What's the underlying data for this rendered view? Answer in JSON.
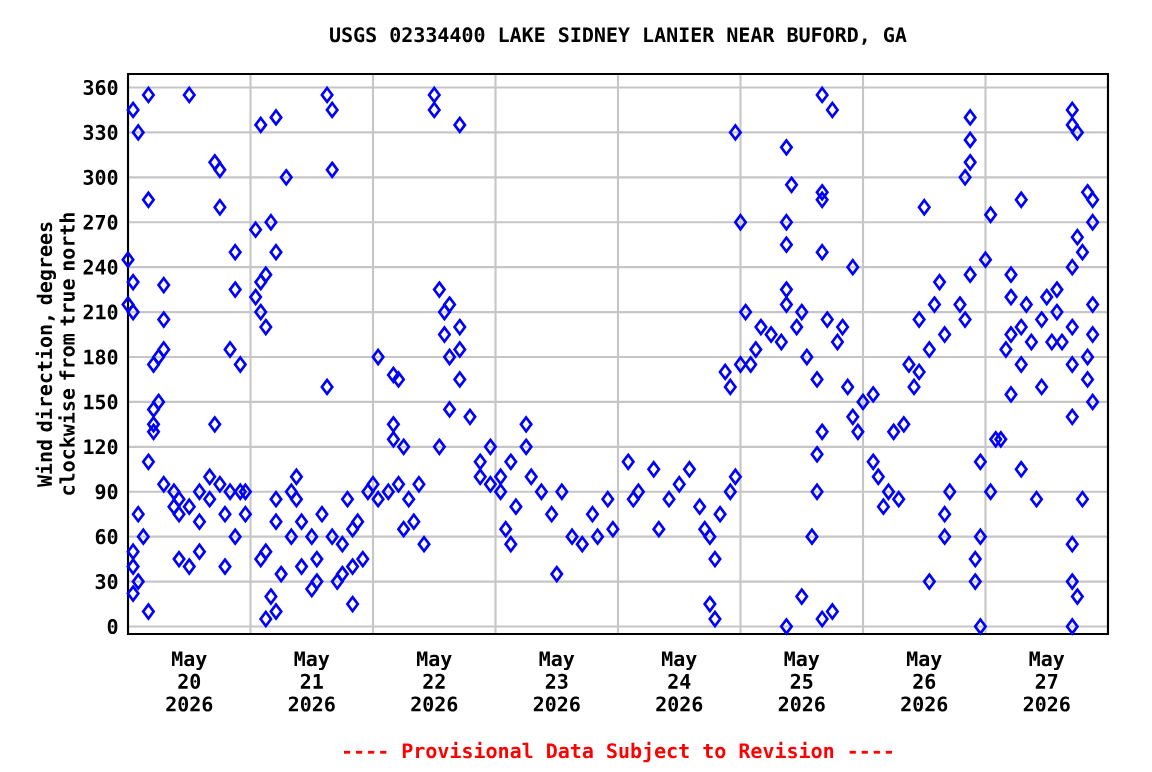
{
  "chart_data": {
    "type": "scatter",
    "title": "USGS 02334400 LAKE SIDNEY LANIER NEAR BUFORD, GA",
    "ylabel": "Wind direction, degrees clockwise from true north",
    "annotations": [
      "---- Provisional Data Subject to Revision ----"
    ],
    "color": "#0000ff",
    "marker": "diamond",
    "grid": true,
    "xlim": [
      "2026-05-20T00:00",
      "2026-05-28T00:00"
    ],
    "ylim": [
      -5,
      369
    ],
    "yticks": [
      0,
      30,
      60,
      90,
      120,
      150,
      180,
      210,
      240,
      270,
      300,
      330,
      360
    ],
    "xticks": [
      {
        "value": "2026-05-20T12:00",
        "label": "May 20 2026"
      },
      {
        "value": "2026-05-21T00:00",
        "label": null
      },
      {
        "value": "2026-05-21T12:00",
        "label": "May 21 2026"
      },
      {
        "value": "2026-05-22T00:00",
        "label": null
      },
      {
        "value": "2026-05-22T12:00",
        "label": "May 22 2026"
      },
      {
        "value": "2026-05-23T00:00",
        "label": null
      },
      {
        "value": "2026-05-23T12:00",
        "label": "May 23 2026"
      },
      {
        "value": "2026-05-24T00:00",
        "label": null
      },
      {
        "value": "2026-05-24T12:00",
        "label": "May 24 2026"
      },
      {
        "value": "2026-05-25T00:00",
        "label": null
      },
      {
        "value": "2026-05-25T12:00",
        "label": "May 25 2026"
      },
      {
        "value": "2026-05-26T00:00",
        "label": null
      },
      {
        "value": "2026-05-26T12:00",
        "label": "May 26 2026"
      },
      {
        "value": "2026-05-27T00:00",
        "label": null
      },
      {
        "value": "2026-05-27T12:00",
        "label": "May 27 2026"
      }
    ],
    "x": [
      "2026-05-20T00:00",
      "2026-05-20T00:00",
      "2026-05-20T01:00",
      "2026-05-20T01:00",
      "2026-05-20T01:00",
      "2026-05-20T01:00",
      "2026-05-20T01:00",
      "2026-05-20T01:00",
      "2026-05-20T02:00",
      "2026-05-20T02:00",
      "2026-05-20T02:00",
      "2026-05-20T03:00",
      "2026-05-20T04:00",
      "2026-05-20T04:00",
      "2026-05-20T04:00",
      "2026-05-20T04:00",
      "2026-05-20T05:00",
      "2026-05-20T05:00",
      "2026-05-20T05:00",
      "2026-05-20T05:00",
      "2026-05-20T06:00",
      "2026-05-20T06:00",
      "2026-05-20T07:00",
      "2026-05-20T07:00",
      "2026-05-20T07:00",
      "2026-05-20T07:00",
      "2026-05-20T09:00",
      "2026-05-20T09:00",
      "2026-05-20T10:00",
      "2026-05-20T10:00",
      "2026-05-20T10:00",
      "2026-05-20T12:00",
      "2026-05-20T12:00",
      "2026-05-20T12:00",
      "2026-05-20T14:00",
      "2026-05-20T14:00",
      "2026-05-20T14:00",
      "2026-05-20T16:00",
      "2026-05-20T16:00",
      "2026-05-20T17:00",
      "2026-05-20T17:00",
      "2026-05-20T18:00",
      "2026-05-20T18:00",
      "2026-05-20T18:00",
      "2026-05-20T19:00",
      "2026-05-20T19:00",
      "2026-05-20T20:00",
      "2026-05-20T20:00",
      "2026-05-20T21:00",
      "2026-05-20T21:00",
      "2026-05-20T21:00",
      "2026-05-20T22:00",
      "2026-05-20T22:00",
      "2026-05-20T23:00",
      "2026-05-20T23:00",
      "2026-05-21T01:00",
      "2026-05-21T01:00",
      "2026-05-21T02:00",
      "2026-05-21T02:00",
      "2026-05-21T02:00",
      "2026-05-21T02:00",
      "2026-05-21T03:00",
      "2026-05-21T03:00",
      "2026-05-21T03:00",
      "2026-05-21T03:00",
      "2026-05-21T04:00",
      "2026-05-21T04:00",
      "2026-05-21T05:00",
      "2026-05-21T05:00",
      "2026-05-21T05:00",
      "2026-05-21T05:00",
      "2026-05-21T05:00",
      "2026-05-21T06:00",
      "2026-05-21T07:00",
      "2026-05-21T08:00",
      "2026-05-21T08:00",
      "2026-05-21T09:00",
      "2026-05-21T09:00",
      "2026-05-21T10:00",
      "2026-05-21T10:00",
      "2026-05-21T12:00",
      "2026-05-21T12:00",
      "2026-05-21T13:00",
      "2026-05-21T13:00",
      "2026-05-21T14:00",
      "2026-05-21T15:00",
      "2026-05-21T15:00",
      "2026-05-21T16:00",
      "2026-05-21T16:00",
      "2026-05-21T16:00",
      "2026-05-21T17:00",
      "2026-05-21T18:00",
      "2026-05-21T18:00",
      "2026-05-21T19:00",
      "2026-05-21T20:00",
      "2026-05-21T20:00",
      "2026-05-21T20:00",
      "2026-05-21T21:00",
      "2026-05-21T22:00",
      "2026-05-21T23:00",
      "2026-05-22T00:00",
      "2026-05-22T01:00",
      "2026-05-22T01:00",
      "2026-05-22T03:00",
      "2026-05-22T04:00",
      "2026-05-22T04:00",
      "2026-05-22T04:00",
      "2026-05-22T05:00",
      "2026-05-22T05:00",
      "2026-05-22T06:00",
      "2026-05-22T06:00",
      "2026-05-22T07:00",
      "2026-05-22T08:00",
      "2026-05-22T09:00",
      "2026-05-22T10:00",
      "2026-05-22T12:00",
      "2026-05-22T12:00",
      "2026-05-22T13:00",
      "2026-05-22T13:00",
      "2026-05-22T14:00",
      "2026-05-22T14:00",
      "2026-05-22T15:00",
      "2026-05-22T15:00",
      "2026-05-22T15:00",
      "2026-05-22T17:00",
      "2026-05-22T17:00",
      "2026-05-22T17:00",
      "2026-05-22T17:00",
      "2026-05-22T19:00",
      "2026-05-22T21:00",
      "2026-05-22T21:00",
      "2026-05-22T23:00",
      "2026-05-22T23:00",
      "2026-05-23T01:00",
      "2026-05-23T01:00",
      "2026-05-23T02:00",
      "2026-05-23T03:00",
      "2026-05-23T03:00",
      "2026-05-23T04:00",
      "2026-05-23T06:00",
      "2026-05-23T06:00",
      "2026-05-23T07:00",
      "2026-05-23T09:00",
      "2026-05-23T11:00",
      "2026-05-23T12:00",
      "2026-05-23T13:00",
      "2026-05-23T15:00",
      "2026-05-23T17:00",
      "2026-05-23T19:00",
      "2026-05-23T20:00",
      "2026-05-23T22:00",
      "2026-05-23T23:00",
      "2026-05-24T02:00",
      "2026-05-24T03:00",
      "2026-05-24T04:00",
      "2026-05-24T07:00",
      "2026-05-24T08:00",
      "2026-05-24T10:00",
      "2026-05-24T12:00",
      "2026-05-24T14:00",
      "2026-05-24T16:00",
      "2026-05-24T17:00",
      "2026-05-24T18:00",
      "2026-05-24T18:00",
      "2026-05-24T19:00",
      "2026-05-24T19:00",
      "2026-05-24T20:00",
      "2026-05-24T21:00",
      "2026-05-24T22:00",
      "2026-05-24T22:00",
      "2026-05-24T23:00",
      "2026-05-24T23:00",
      "2026-05-25T00:00",
      "2026-05-25T00:00",
      "2026-05-25T01:00",
      "2026-05-25T02:00",
      "2026-05-25T03:00",
      "2026-05-25T04:00",
      "2026-05-25T06:00",
      "2026-05-25T08:00",
      "2026-05-25T09:00",
      "2026-05-25T09:00",
      "2026-05-25T09:00",
      "2026-05-25T09:00",
      "2026-05-25T09:00",
      "2026-05-25T09:00",
      "2026-05-25T10:00",
      "2026-05-25T11:00",
      "2026-05-25T12:00",
      "2026-05-25T12:00",
      "2026-05-25T13:00",
      "2026-05-25T14:00",
      "2026-05-25T15:00",
      "2026-05-25T15:00",
      "2026-05-25T15:00",
      "2026-05-25T16:00",
      "2026-05-25T16:00",
      "2026-05-25T16:00",
      "2026-05-25T16:00",
      "2026-05-25T16:00",
      "2026-05-25T16:00",
      "2026-05-25T17:00",
      "2026-05-25T18:00",
      "2026-05-25T18:00",
      "2026-05-25T19:00",
      "2026-05-25T20:00",
      "2026-05-25T21:00",
      "2026-05-25T22:00",
      "2026-05-25T22:00",
      "2026-05-25T23:00",
      "2026-05-26T00:00",
      "2026-05-26T02:00",
      "2026-05-26T02:00",
      "2026-05-26T03:00",
      "2026-05-26T04:00",
      "2026-05-26T05:00",
      "2026-05-26T06:00",
      "2026-05-26T07:00",
      "2026-05-26T08:00",
      "2026-05-26T09:00",
      "2026-05-26T10:00",
      "2026-05-26T11:00",
      "2026-05-26T11:00",
      "2026-05-26T12:00",
      "2026-05-26T13:00",
      "2026-05-26T13:00",
      "2026-05-26T14:00",
      "2026-05-26T15:00",
      "2026-05-26T16:00",
      "2026-05-26T16:00",
      "2026-05-26T16:00",
      "2026-05-26T17:00",
      "2026-05-26T19:00",
      "2026-05-26T20:00",
      "2026-05-26T20:00",
      "2026-05-26T21:00",
      "2026-05-26T21:00",
      "2026-05-26T21:00",
      "2026-05-26T21:00",
      "2026-05-26T22:00",
      "2026-05-26T22:00",
      "2026-05-26T23:00",
      "2026-05-26T23:00",
      "2026-05-26T23:00",
      "2026-05-27T00:00",
      "2026-05-27T01:00",
      "2026-05-27T01:00",
      "2026-05-27T02:00",
      "2026-05-27T03:00",
      "2026-05-27T04:00",
      "2026-05-27T05:00",
      "2026-05-27T05:00",
      "2026-05-27T05:00",
      "2026-05-27T05:00",
      "2026-05-27T07:00",
      "2026-05-27T07:00",
      "2026-05-27T07:00",
      "2026-05-27T07:00",
      "2026-05-27T08:00",
      "2026-05-27T09:00",
      "2026-05-27T10:00",
      "2026-05-27T11:00",
      "2026-05-27T11:00",
      "2026-05-27T12:00",
      "2026-05-27T13:00",
      "2026-05-27T14:00",
      "2026-05-27T14:00",
      "2026-05-27T15:00",
      "2026-05-27T17:00",
      "2026-05-27T17:00",
      "2026-05-27T17:00",
      "2026-05-27T17:00",
      "2026-05-27T17:00",
      "2026-05-27T17:00",
      "2026-05-27T17:00",
      "2026-05-27T17:00",
      "2026-05-27T17:00",
      "2026-05-27T18:00",
      "2026-05-27T18:00",
      "2026-05-27T18:00",
      "2026-05-27T19:00",
      "2026-05-27T19:00",
      "2026-05-27T20:00",
      "2026-05-27T20:00",
      "2026-05-27T20:00",
      "2026-05-27T21:00",
      "2026-05-27T21:00",
      "2026-05-27T21:00",
      "2026-05-27T21:00",
      "2026-05-27T21:00"
    ],
    "values": [
      215,
      245,
      345,
      230,
      210,
      40,
      22,
      50,
      30,
      330,
      75,
      60,
      110,
      355,
      10,
      285,
      175,
      135,
      145,
      130,
      150,
      180,
      185,
      205,
      95,
      228,
      90,
      80,
      75,
      85,
      45,
      355,
      80,
      40,
      70,
      90,
      50,
      100,
      85,
      310,
      135,
      280,
      305,
      95,
      40,
      75,
      185,
      90,
      250,
      225,
      60,
      90,
      175,
      75,
      90,
      265,
      220,
      230,
      210,
      45,
      335,
      235,
      200,
      50,
      5,
      270,
      20,
      340,
      250,
      85,
      10,
      70,
      35,
      300,
      60,
      90,
      100,
      85,
      40,
      70,
      25,
      60,
      30,
      45,
      75,
      355,
      160,
      345,
      60,
      305,
      30,
      35,
      55,
      85,
      15,
      40,
      65,
      70,
      45,
      90,
      95,
      180,
      85,
      90,
      135,
      168,
      125,
      165,
      95,
      120,
      65,
      85,
      70,
      95,
      55,
      345,
      355,
      120,
      225,
      210,
      195,
      180,
      215,
      145,
      335,
      185,
      165,
      200,
      140,
      110,
      100,
      95,
      120,
      100,
      90,
      65,
      110,
      55,
      80,
      135,
      120,
      100,
      90,
      75,
      35,
      90,
      60,
      55,
      75,
      60,
      85,
      65,
      110,
      85,
      90,
      105,
      65,
      85,
      95,
      105,
      80,
      65,
      15,
      60,
      5,
      45,
      75,
      170,
      90,
      160,
      100,
      330,
      175,
      270,
      210,
      175,
      185,
      200,
      195,
      190,
      225,
      270,
      0,
      255,
      215,
      320,
      295,
      200,
      20,
      210,
      180,
      60,
      165,
      90,
      115,
      355,
      5,
      130,
      290,
      285,
      250,
      205,
      345,
      10,
      190,
      200,
      160,
      240,
      140,
      130,
      150,
      155,
      110,
      100,
      80,
      90,
      130,
      85,
      135,
      175,
      160,
      170,
      205,
      280,
      185,
      30,
      215,
      230,
      195,
      60,
      75,
      90,
      215,
      205,
      300,
      340,
      325,
      310,
      235,
      45,
      30,
      0,
      110,
      60,
      245,
      275,
      90,
      125,
      125,
      185,
      195,
      220,
      235,
      155,
      200,
      285,
      175,
      105,
      215,
      190,
      85,
      205,
      160,
      220,
      190,
      210,
      225,
      190,
      240,
      0,
      345,
      200,
      140,
      335,
      175,
      55,
      30,
      330,
      260,
      20,
      85,
      250,
      290,
      165,
      180,
      285,
      215,
      150,
      270,
      195
    ]
  }
}
